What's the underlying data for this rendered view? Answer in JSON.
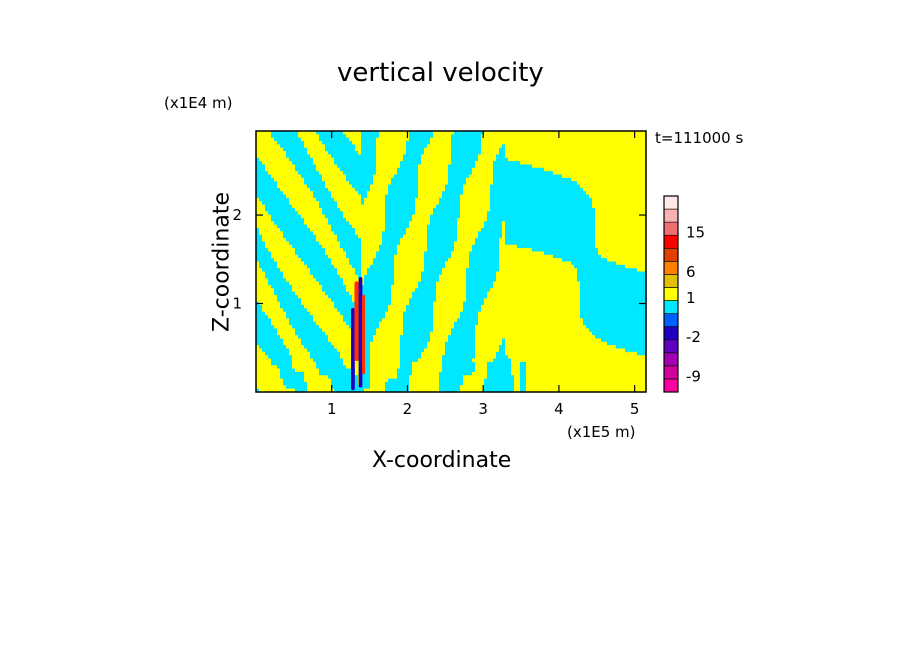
{
  "chart_data": {
    "type": "heatmap",
    "title": "vertical velocity",
    "xlabel": "X-coordinate",
    "ylabel": "Z-coordinate",
    "x_unit": "(x1E5 m)",
    "y_unit": "(x1E4 m)",
    "time_label": "t=111000 s",
    "xlim": [
      0,
      5.15
    ],
    "ylim": [
      0,
      2.95
    ],
    "x_ticks": [
      "1",
      "2",
      "3",
      "4",
      "5"
    ],
    "x_tick_values": [
      1,
      2,
      3,
      4,
      5
    ],
    "y_ticks": [
      "1",
      "2"
    ],
    "y_tick_values": [
      1,
      2
    ],
    "field_colors": {
      "negative_weak": "#00e8ff",
      "positive_weak": "#ffff00",
      "strong_up": "#ff3000",
      "strong_down": "#2000c0"
    },
    "colorbar": {
      "colors": [
        "#ff00a0",
        "#d0009c",
        "#a000b0",
        "#6000c0",
        "#2000c0",
        "#0060ff",
        "#00e8ff",
        "#ffff00",
        "#e0c000",
        "#ff8000",
        "#e04000",
        "#ff0000",
        "#f07070",
        "#f8b0b0",
        "#ffe8e8"
      ],
      "labels": [
        "-9",
        "-2",
        "1",
        "6",
        "15"
      ]
    }
  }
}
